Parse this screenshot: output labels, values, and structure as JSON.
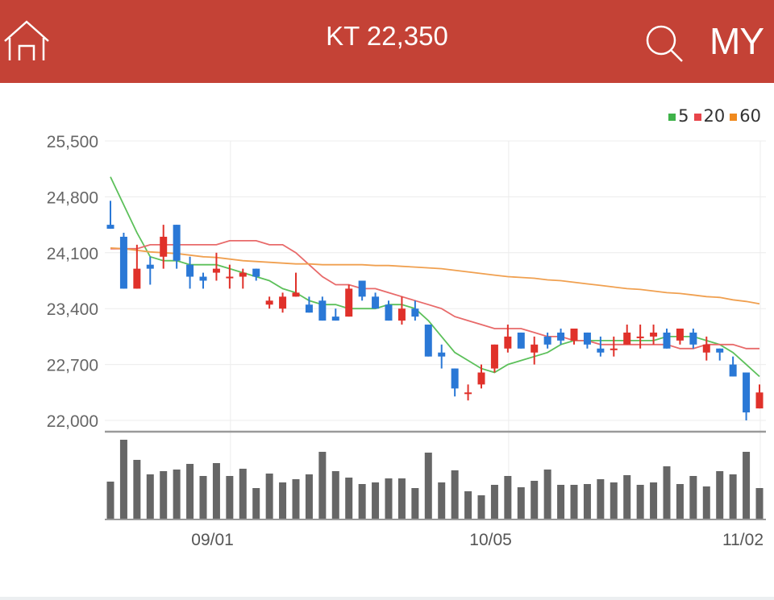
{
  "header": {
    "title": "KT 22,350",
    "home_icon": "home-icon",
    "search_icon": "search-icon",
    "my_label": "MY"
  },
  "colors": {
    "header": "#c44236",
    "up": "#e0312a",
    "down": "#2a78d6",
    "ma5": "#5cc05a",
    "ma20": "#e86a6a",
    "ma60": "#f0a050",
    "volume": "#666666"
  },
  "legend": [
    {
      "label": "5",
      "color": "#3fb34a"
    },
    {
      "label": "20",
      "color": "#e8454a"
    },
    {
      "label": "60",
      "color": "#f08a1e"
    }
  ],
  "chart_data": {
    "type": "candlestick",
    "ylim": [
      22000,
      25500
    ],
    "yticks": [
      "25,500",
      "24,800",
      "24,100",
      "23,400",
      "22,700",
      "22,000"
    ],
    "ytick_values": [
      25500,
      24800,
      24100,
      23400,
      22700,
      22000
    ],
    "xticks": [
      {
        "label": "09/01",
        "index": 9
      },
      {
        "label": "10/05",
        "index": 30
      },
      {
        "label": "11/02",
        "index": 49
      }
    ],
    "grid": true,
    "legend_position": "top-right",
    "ohlc": [
      [
        24450,
        24750,
        24400,
        24400
      ],
      [
        24300,
        24350,
        23650,
        23650
      ],
      [
        23650,
        24200,
        23650,
        23900
      ],
      [
        23950,
        24050,
        23700,
        23900
      ],
      [
        24050,
        24450,
        23900,
        24300
      ],
      [
        24450,
        24450,
        23900,
        24000
      ],
      [
        23950,
        24050,
        23650,
        23800
      ],
      [
        23800,
        23850,
        23650,
        23750
      ],
      [
        23850,
        24100,
        23750,
        23900
      ],
      [
        23800,
        23950,
        23650,
        23800
      ],
      [
        23800,
        23900,
        23650,
        23850
      ],
      [
        23900,
        23900,
        23750,
        23800
      ],
      [
        23450,
        23550,
        23400,
        23500
      ],
      [
        23400,
        23600,
        23350,
        23550
      ],
      [
        23550,
        23850,
        23550,
        23600
      ],
      [
        23450,
        23550,
        23350,
        23350
      ],
      [
        23500,
        23550,
        23250,
        23250
      ],
      [
        23300,
        23400,
        23250,
        23250
      ],
      [
        23300,
        23700,
        23300,
        23650
      ],
      [
        23750,
        23750,
        23500,
        23550
      ],
      [
        23550,
        23600,
        23400,
        23400
      ],
      [
        23450,
        23500,
        23250,
        23250
      ],
      [
        23250,
        23550,
        23200,
        23400
      ],
      [
        23400,
        23500,
        23250,
        23300
      ],
      [
        23200,
        23200,
        22800,
        22800
      ],
      [
        22850,
        22950,
        22650,
        22800
      ],
      [
        22650,
        22650,
        22300,
        22400
      ],
      [
        22350,
        22450,
        22250,
        22350
      ],
      [
        22450,
        22700,
        22400,
        22600
      ],
      [
        22650,
        22950,
        22600,
        22950
      ],
      [
        22900,
        23200,
        22850,
        23050
      ],
      [
        23100,
        23100,
        22900,
        22900
      ],
      [
        22850,
        23050,
        22700,
        22950
      ],
      [
        23050,
        23100,
        22900,
        22950
      ],
      [
        23100,
        23150,
        22950,
        23000
      ],
      [
        23000,
        23150,
        22950,
        23150
      ],
      [
        23100,
        23100,
        22900,
        22950
      ],
      [
        22900,
        23050,
        22800,
        22850
      ],
      [
        22900,
        23050,
        22800,
        22900
      ],
      [
        22950,
        23200,
        22950,
        23100
      ],
      [
        23050,
        23200,
        22900,
        23050
      ],
      [
        23050,
        23200,
        22950,
        23100
      ],
      [
        23100,
        23150,
        22900,
        22900
      ],
      [
        23000,
        23150,
        22950,
        23150
      ],
      [
        23100,
        23150,
        22900,
        22950
      ],
      [
        22850,
        23050,
        22750,
        22950
      ],
      [
        22900,
        22900,
        22750,
        22850
      ],
      [
        22700,
        22800,
        22550,
        22550
      ],
      [
        22600,
        22600,
        22000,
        22100
      ],
      [
        22150,
        22450,
        22150,
        22350
      ]
    ],
    "ma": [
      {
        "name": "5",
        "values": [
          25050,
          24700,
          24350,
          24050,
          24000,
          24000,
          23950,
          23950,
          23950,
          23900,
          23850,
          23800,
          23750,
          23650,
          23600,
          23500,
          23450,
          23450,
          23400,
          23400,
          23400,
          23450,
          23450,
          23400,
          23250,
          23050,
          22850,
          22750,
          22650,
          22600,
          22700,
          22750,
          22800,
          22850,
          22950,
          23000,
          23000,
          23000,
          23000,
          23000,
          23000,
          23000,
          23050,
          23050,
          23050,
          23000,
          22950,
          22850,
          22700,
          22550
        ]
      },
      {
        "name": "20",
        "values": [
          24150,
          24150,
          24150,
          24200,
          24200,
          24200,
          24200,
          24200,
          24200,
          24250,
          24250,
          24250,
          24200,
          24200,
          24100,
          23950,
          23800,
          23700,
          23700,
          23650,
          23650,
          23600,
          23550,
          23500,
          23450,
          23400,
          23300,
          23250,
          23200,
          23150,
          23150,
          23150,
          23100,
          23050,
          23050,
          23000,
          23000,
          22950,
          22950,
          22950,
          22950,
          22950,
          22950,
          22900,
          22900,
          22950,
          22950,
          22950,
          22900,
          22900
        ]
      },
      {
        "name": "60",
        "values": [
          24160,
          24150,
          24130,
          24110,
          24100,
          24090,
          24070,
          24050,
          24040,
          24020,
          24000,
          23990,
          23980,
          23970,
          23960,
          23960,
          23950,
          23950,
          23950,
          23950,
          23940,
          23940,
          23930,
          23920,
          23910,
          23900,
          23880,
          23860,
          23840,
          23820,
          23800,
          23790,
          23780,
          23760,
          23750,
          23730,
          23710,
          23690,
          23670,
          23650,
          23640,
          23620,
          23600,
          23590,
          23570,
          23550,
          23540,
          23510,
          23490,
          23460
        ]
      }
    ],
    "volume_relative": [
      46,
      98,
      73,
      55,
      59,
      61,
      68,
      53,
      69,
      53,
      62,
      38,
      56,
      45,
      49,
      55,
      83,
      59,
      51,
      43,
      45,
      50,
      50,
      38,
      82,
      45,
      60,
      34,
      29,
      42,
      53,
      39,
      47,
      61,
      42,
      42,
      43,
      49,
      45,
      54,
      42,
      45,
      65,
      43,
      53,
      40,
      59,
      55,
      83,
      38
    ]
  }
}
